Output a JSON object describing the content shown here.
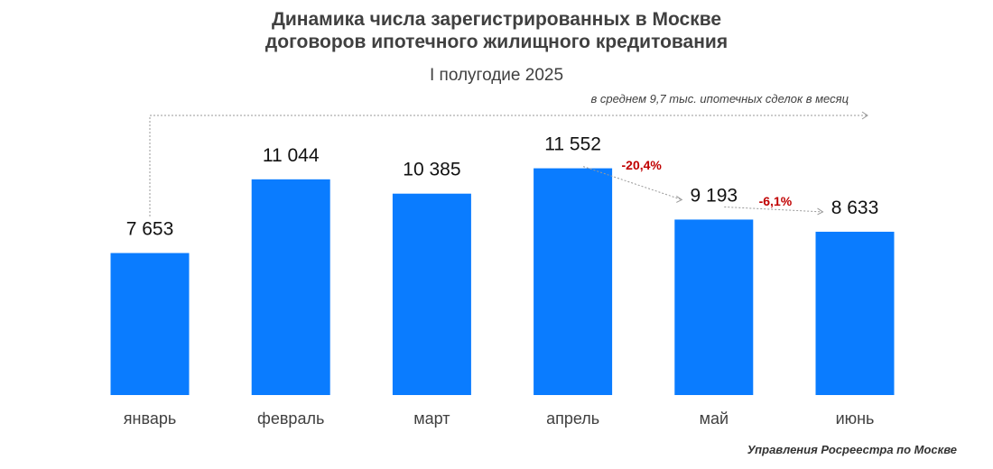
{
  "chart_data": {
    "type": "bar",
    "title": [
      "Динамика числа зарегистрированных в Москве",
      "договоров ипотечного жилищного кредитования"
    ],
    "subtitle": "I полугодие 2025",
    "categories": [
      "январь",
      "февраль",
      "март",
      "апрель",
      "май",
      "июнь"
    ],
    "values": [
      7653,
      11044,
      10385,
      11552,
      9193,
      8633
    ],
    "value_labels": [
      "7 653",
      "11 044",
      "10 385",
      "11 552",
      "9 193",
      "8 633"
    ],
    "annotations": {
      "average_note": "в среднем 9,7 тыс. ипотечных сделок в месяц",
      "changes": [
        {
          "from": "апрель",
          "to": "май",
          "label": "-20,4%"
        },
        {
          "from": "май",
          "to": "июнь",
          "label": "-6,1%"
        }
      ]
    },
    "ylim": [
      1120,
      12500
    ],
    "grid": false,
    "bar_color": "#0a7cff",
    "change_color": "#c00000"
  },
  "source": "Управления Росреестра по Москве"
}
